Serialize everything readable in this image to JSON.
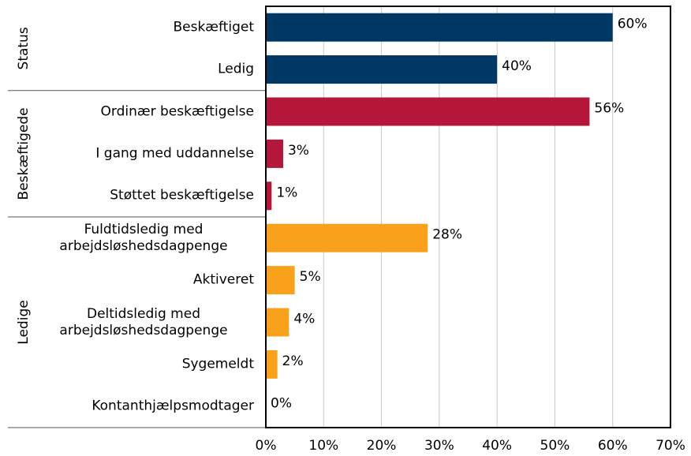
{
  "chart_data": {
    "type": "bar",
    "orientation": "horizontal",
    "groups": [
      {
        "name": "Status",
        "color": "#003865",
        "categories": [
          "Beskæftiget",
          "Ledig"
        ],
        "values": [
          60,
          40
        ],
        "value_labels": [
          "60%",
          "40%"
        ]
      },
      {
        "name": "Beskæftigede",
        "color": "#b5173b",
        "categories": [
          "Ordinær beskæftigelse",
          "I gang med uddannelse",
          "Støttet beskæftigelse"
        ],
        "values": [
          56,
          3,
          1
        ],
        "value_labels": [
          "56%",
          "3%",
          "1%"
        ]
      },
      {
        "name": "Ledige",
        "color": "#f9a11b",
        "categories": [
          "Fuldtidsledig med arbejdsløshedsdagpenge",
          "Aktiveret",
          "Deltidsledig med arbejdsløshedsdagpenge",
          "Sygemeldt",
          "Kontanthjælpsmodtager"
        ],
        "values": [
          28,
          5,
          4,
          2,
          0
        ],
        "value_labels": [
          "28%",
          "5%",
          "4%",
          "2%",
          "0%"
        ]
      }
    ],
    "xlim": [
      0,
      70
    ],
    "xticks": [
      {
        "value": 0,
        "label": "0%"
      },
      {
        "value": 10,
        "label": "10%"
      },
      {
        "value": 20,
        "label": "20%"
      },
      {
        "value": 30,
        "label": "30%"
      },
      {
        "value": 40,
        "label": "40%"
      },
      {
        "value": 50,
        "label": "50%"
      },
      {
        "value": 60,
        "label": "60%"
      },
      {
        "value": 70,
        "label": "70%"
      }
    ],
    "grid": true
  }
}
